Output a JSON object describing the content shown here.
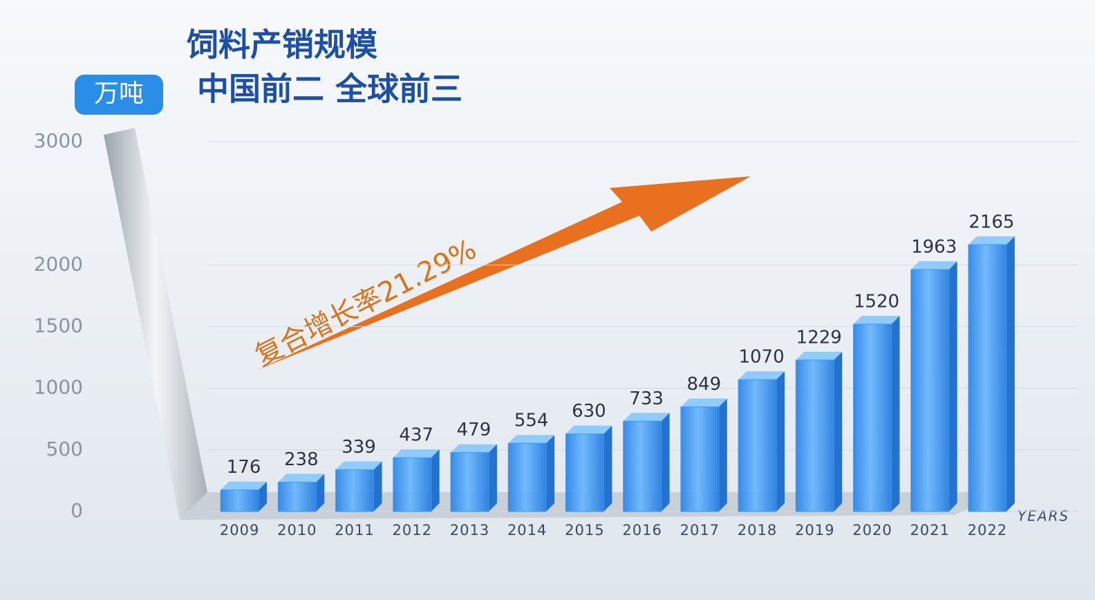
{
  "chart_data": {
    "type": "bar",
    "title": "饲料产销规模",
    "subtitle": "中国前二 全球前三",
    "unit_label": "万吨",
    "annotation": "复合增长率21.29%",
    "x_label": "YEARS",
    "categories": [
      "2009",
      "2010",
      "2011",
      "2012",
      "2013",
      "2014",
      "2015",
      "2016",
      "2017",
      "2018",
      "2019",
      "2020",
      "2021",
      "2022"
    ],
    "values": [
      176,
      238,
      339,
      437,
      479,
      554,
      630,
      733,
      849,
      1070,
      1229,
      1520,
      1963,
      2165
    ],
    "color": "#3a96f0",
    "ylim": [
      0,
      3000
    ],
    "yticks": [
      0,
      500,
      1000,
      1500,
      2000,
      3000
    ],
    "grid": true
  }
}
